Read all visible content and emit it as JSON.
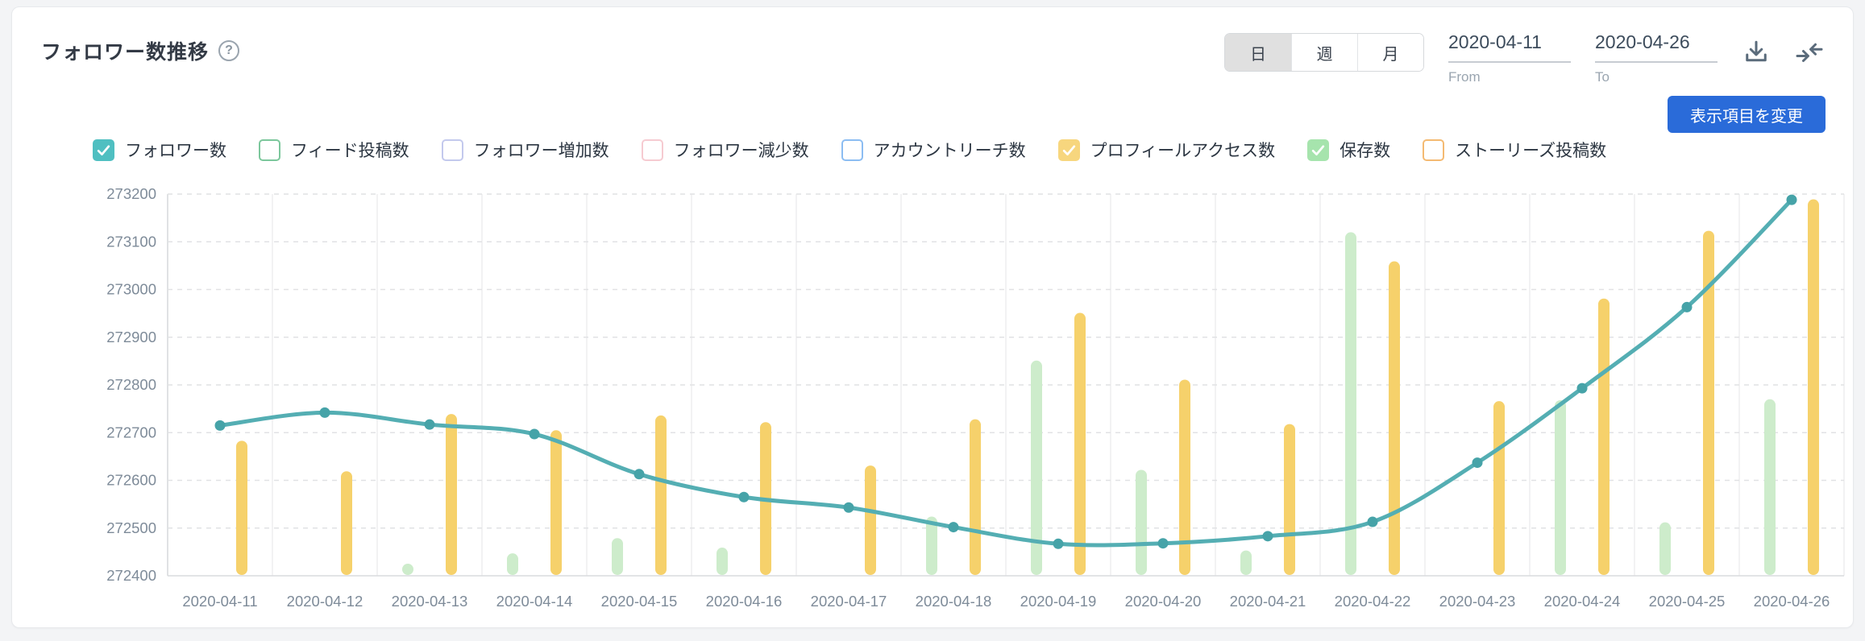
{
  "header": {
    "title": "フォロワー数推移",
    "help_icon": "question-circle",
    "period_tabs": [
      {
        "label": "日",
        "selected": true
      },
      {
        "label": "週",
        "selected": false
      },
      {
        "label": "月",
        "selected": false
      }
    ],
    "date_from": {
      "value": "2020-04-11",
      "label": "From"
    },
    "date_to": {
      "value": "2020-04-26",
      "label": "To"
    },
    "action_icons": [
      "download-icon",
      "compress-arrows-icon"
    ]
  },
  "toolbar": {
    "change_items_label": "表示項目を変更",
    "button_color": "#2a6bd9"
  },
  "legend": {
    "items": [
      {
        "label": "フォロワー数",
        "checked": true,
        "color": "#4fbfc1"
      },
      {
        "label": "フィード投稿数",
        "checked": false,
        "color": "#7cc79c"
      },
      {
        "label": "フォロワー増加数",
        "checked": false,
        "color": "#c3c9ed"
      },
      {
        "label": "フォロワー減少数",
        "checked": false,
        "color": "#f6cbd1"
      },
      {
        "label": "アカウントリーチ数",
        "checked": false,
        "color": "#8cbdf2"
      },
      {
        "label": "プロフィールアクセス数",
        "checked": true,
        "color": "#f7d67e"
      },
      {
        "label": "保存数",
        "checked": true,
        "color": "#a6e4ad"
      },
      {
        "label": "ストーリーズ投稿数",
        "checked": false,
        "color": "#f4ba72"
      }
    ]
  },
  "chart_data": {
    "type": "mixed-line-bar",
    "title": "フォロワー数推移",
    "x_labels": [
      "2020-04-11",
      "2020-04-12",
      "2020-04-13",
      "2020-04-14",
      "2020-04-15",
      "2020-04-16",
      "2020-04-17",
      "2020-04-18",
      "2020-04-19",
      "2020-04-20",
      "2020-04-21",
      "2020-04-22",
      "2020-04-23",
      "2020-04-24",
      "2020-04-25",
      "2020-04-26"
    ],
    "y_axis": {
      "min": 272400,
      "max": 273200,
      "step": 100,
      "ticks": [
        272400,
        272500,
        272600,
        272700,
        272800,
        272900,
        273000,
        273100,
        273200
      ]
    },
    "series": [
      {
        "name": "フォロワー数",
        "type": "line",
        "color": "#54aeb3",
        "marker_color": "#46a3a8",
        "values": [
          272715,
          272742,
          272717,
          272697,
          272613,
          272565,
          272543,
          272502,
          272467,
          272468,
          272483,
          272513,
          272637,
          272793,
          272963,
          273188
        ]
      },
      {
        "name": "プロフィールアクセス数",
        "type": "bar",
        "color": "#f6d16b",
        "baseline": 272400,
        "values_axis_top": [
          272683,
          272619,
          272739,
          272705,
          272736,
          272722,
          272631,
          272728,
          272951,
          272811,
          272718,
          273059,
          272766,
          272981,
          273123,
          273189
        ]
      },
      {
        "name": "保存数",
        "type": "bar",
        "color": "#cdeccb",
        "baseline": 272400,
        "values_axis_top": [
          null,
          null,
          272420,
          272447,
          272479,
          272459,
          null,
          272524,
          272851,
          272622,
          272453,
          273120,
          null,
          272768,
          272512,
          272770
        ]
      }
    ],
    "grid": {
      "horizontal": "dashed",
      "vertical": "solid",
      "legend_position": "top"
    }
  }
}
